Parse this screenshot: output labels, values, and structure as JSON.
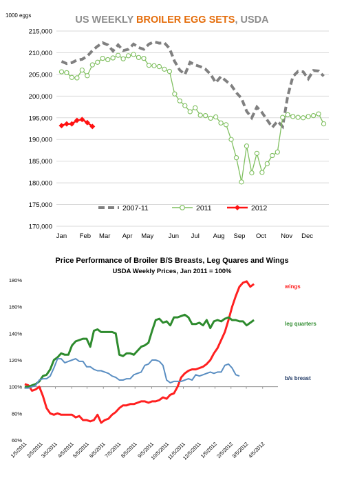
{
  "chart_data": [
    {
      "type": "line",
      "title_parts": [
        {
          "text": "US WEEKLY ",
          "color": "#8c8c8c"
        },
        {
          "text": "BROILER EGG SETS",
          "color": "#e46c0a"
        },
        {
          "text": ", USDA",
          "color": "#8c8c8c"
        }
      ],
      "unit_label": "1000 eggs",
      "ylim": [
        170000,
        215000
      ],
      "y_ticks": [
        170000,
        175000,
        180000,
        185000,
        190000,
        195000,
        200000,
        205000,
        210000,
        215000
      ],
      "y_tick_labels": [
        "170,000",
        "175,000",
        "180,000",
        "185,000",
        "190,000",
        "195,000",
        "200,000",
        "205,000",
        "210,000",
        "215,000"
      ],
      "x_tick_labels": [
        "Jan",
        "Feb",
        "Mar",
        "Apr",
        "May",
        "Jun",
        "Jul",
        "Aug",
        "Sep",
        "Oct",
        "Nov",
        "Dec"
      ],
      "x_tick_weeks": [
        1,
        5.6,
        9.4,
        13.8,
        17.7,
        22.8,
        27,
        31.6,
        35.6,
        39.8,
        44.8,
        48.8
      ],
      "week_range": [
        0,
        53
      ],
      "grid": true,
      "legend_position": "bottom-center",
      "series": [
        {
          "name": "2007-11",
          "color": "#808080",
          "style": "dashed",
          "x": [
            1,
            2,
            3,
            4,
            5,
            6,
            7,
            8,
            9,
            10,
            11,
            12,
            13,
            14,
            15,
            16,
            17,
            18,
            19,
            20,
            21,
            22,
            23,
            24,
            25,
            26,
            27,
            28,
            29,
            30,
            31,
            32,
            33,
            34,
            35,
            36,
            37,
            38,
            39,
            40,
            41,
            42,
            43,
            44,
            45,
            46,
            47,
            48,
            49,
            50,
            51,
            52
          ],
          "values": [
            208000,
            207500,
            207700,
            208300,
            208500,
            209200,
            210500,
            211500,
            212300,
            211800,
            210400,
            211800,
            210500,
            210800,
            212000,
            211200,
            210800,
            212000,
            212500,
            212200,
            212300,
            211000,
            208000,
            206000,
            205000,
            207800,
            207200,
            206800,
            206200,
            205000,
            203100,
            204500,
            203500,
            202500,
            200800,
            199500,
            196500,
            195000,
            197500,
            196200,
            194500,
            192800,
            194200,
            193000,
            200000,
            204500,
            205700,
            205600,
            204000,
            205900,
            205800,
            204600
          ]
        },
        {
          "name": "2011",
          "color": "#7fbf5f",
          "style": "solid-circles",
          "x": [
            1,
            2,
            3,
            4,
            5,
            6,
            7,
            8,
            9,
            10,
            11,
            12,
            13,
            14,
            15,
            16,
            17,
            18,
            19,
            20,
            21,
            22,
            23,
            24,
            25,
            26,
            27,
            28,
            29,
            30,
            31,
            32,
            33,
            34,
            35,
            36,
            37,
            38,
            39,
            40,
            41,
            42,
            43,
            44,
            45,
            46,
            47,
            48,
            49,
            50,
            51,
            52
          ],
          "values": [
            205600,
            205400,
            204300,
            204200,
            206000,
            204700,
            207200,
            207800,
            208700,
            208400,
            208800,
            209400,
            208600,
            209300,
            209600,
            208900,
            208700,
            207100,
            207000,
            206800,
            206200,
            205700,
            200500,
            198900,
            197800,
            196400,
            197300,
            195600,
            195500,
            194900,
            195200,
            193800,
            193400,
            190000,
            185800,
            180200,
            188500,
            182300,
            186800,
            182400,
            184400,
            186300,
            187100,
            195100,
            195700,
            195300,
            195100,
            195000,
            195300,
            195500,
            195900,
            193600
          ]
        },
        {
          "name": "2012",
          "color": "#ff1111",
          "style": "solid-diamonds",
          "x": [
            1,
            2,
            3,
            4,
            5,
            6,
            7
          ],
          "values": [
            193200,
            193600,
            193600,
            194400,
            194600,
            193900,
            193000
          ]
        }
      ]
    },
    {
      "type": "line",
      "title": "Price Performance of Broiler B/S Breasts, Leg Quares and Wings",
      "subtitle": "USDA Weekly Prices, Jan 2011 = 100%",
      "ylim": [
        60,
        180
      ],
      "y_ticks": [
        60,
        80,
        100,
        120,
        140,
        160,
        180
      ],
      "y_tick_labels": [
        "60%",
        "80%",
        "100%",
        "120%",
        "140%",
        "160%",
        "180%"
      ],
      "x_tick_labels": [
        "1/5/2011",
        "2/5/2011",
        "3/5/2011",
        "4/5/2011",
        "5/5/2011",
        "6/5/2011",
        "7/5/2011",
        "8/5/2011",
        "9/5/2011",
        "10/5/2011",
        "11/5/2011",
        "12/5/2011",
        "1/5/2012",
        "2/5/2012",
        "3/5/2012",
        "4/5/2012"
      ],
      "x_tick_weeks": [
        0,
        4.4,
        8.4,
        12.9,
        17.1,
        21.6,
        25.9,
        30.3,
        34.9,
        39.1,
        43.6,
        47.9,
        52.3,
        56.7,
        60.9,
        65.4
      ],
      "week_range": [
        0,
        69.6
      ],
      "grid": false,
      "series": [
        {
          "name": "wings",
          "color": "#ff2020",
          "values": [
            102,
            101,
            97,
            98,
            100,
            93,
            84,
            80,
            79,
            80,
            79,
            79,
            79,
            79,
            77,
            78,
            75,
            75,
            74,
            75,
            79,
            73,
            75,
            76,
            79,
            81,
            84,
            86,
            86,
            87,
            87,
            88,
            89,
            89,
            88,
            89,
            89,
            90,
            92,
            91,
            94,
            95,
            100,
            107,
            110,
            112,
            113,
            113,
            114,
            115,
            117,
            120,
            125,
            129,
            135,
            141,
            150,
            160,
            168,
            175,
            178,
            179,
            175,
            177
          ]
        },
        {
          "name": "leg quarters",
          "color": "#2e8b2e",
          "values": [
            100,
            100,
            101,
            102,
            104,
            108,
            109,
            113,
            120,
            122,
            125,
            124,
            124,
            131,
            134,
            135,
            136,
            136,
            130,
            142,
            143,
            141,
            141,
            141,
            141,
            140,
            124,
            123,
            125,
            125,
            124,
            127,
            130,
            131,
            133,
            142,
            150,
            151,
            148,
            149,
            146,
            152,
            152,
            153,
            154,
            152,
            147,
            147,
            148,
            146,
            150,
            144,
            149,
            150,
            149,
            151,
            152,
            150,
            150,
            149,
            149,
            146,
            148,
            150
          ]
        },
        {
          "name": "b/s breast",
          "color": "#5a8ec2",
          "values": [
            99,
            99,
            100,
            101,
            105,
            106,
            106,
            108,
            114,
            121,
            121,
            118,
            119,
            120,
            121,
            119,
            119,
            115,
            115,
            113,
            112,
            112,
            111,
            110,
            108,
            107,
            105,
            105,
            106,
            106,
            109,
            110,
            111,
            116,
            117,
            120,
            120,
            119,
            116,
            105,
            103,
            104,
            104,
            104,
            105,
            106,
            105,
            109,
            108,
            109,
            110,
            111,
            110,
            111,
            111,
            116,
            117,
            114,
            109,
            108
          ]
        }
      ]
    }
  ],
  "legend": [
    {
      "label": "2007-11"
    },
    {
      "label": "2011"
    },
    {
      "label": "2012"
    }
  ]
}
